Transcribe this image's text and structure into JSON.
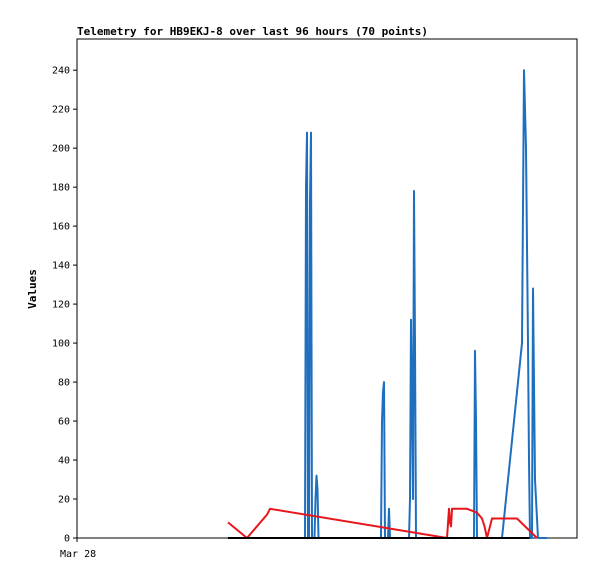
{
  "chart_data": {
    "type": "line",
    "title": "Telemetry for HB9EKJ-8 over last 96 hours (70 points)",
    "ylabel": "Values",
    "xlabel": "",
    "x_tick_labels": [
      {
        "label": "Mar 28",
        "x": 0
      }
    ],
    "xlim": [
      0,
      100
    ],
    "ylim": [
      0,
      256
    ],
    "yticks": [
      0,
      20,
      40,
      60,
      80,
      100,
      120,
      140,
      160,
      180,
      200,
      220,
      240
    ],
    "grid": false,
    "colors": {
      "blue": "#1f6fbf",
      "red": "#e8161a",
      "black": "#000000"
    },
    "series": [
      {
        "color": "blue",
        "x": [
          30.2,
          45.4,
          45.6,
          45.8,
          46.0,
          46.2,
          46.4,
          46.6,
          46.8,
          47.0,
          47.3,
          47.5,
          47.7,
          47.9,
          48.1,
          48.3,
          48.5,
          48.7,
          48.9,
          49.2,
          49.4,
          49.6,
          50.0,
          50.4,
          60.6,
          60.8,
          61.0,
          61.2,
          61.4,
          61.6,
          61.8,
          62.0,
          62.2,
          62.4,
          62.6,
          62.8,
          63.0,
          63.2,
          63.4,
          63.6,
          66.2,
          66.4,
          66.6,
          66.8,
          67.0,
          67.2,
          67.4,
          67.6,
          67.8,
          68.0,
          68.2,
          68.4,
          68.6,
          68.8,
          79.0,
          79.2,
          79.4,
          79.6,
          79.8,
          80.0,
          80.2,
          80.4,
          80.6,
          80.8,
          85.0,
          89.0,
          89.4,
          89.8,
          90.2,
          90.4,
          90.6,
          90.8,
          91.0,
          91.2,
          91.6,
          92.2,
          92.4,
          92.6,
          92.8,
          93.0,
          93.2,
          93.4,
          93.6,
          93.8,
          94.0
        ],
        "y": [
          0,
          0,
          0,
          180,
          208,
          0,
          0,
          173,
          208,
          0,
          0,
          0,
          20,
          32,
          25,
          0,
          0,
          0,
          0,
          0,
          0,
          0,
          0,
          0,
          0,
          0,
          60,
          75,
          80,
          0,
          0,
          0,
          0,
          15,
          0,
          0,
          0,
          0,
          0,
          0,
          0,
          0,
          20,
          112,
          70,
          20,
          178,
          100,
          0,
          0,
          0,
          0,
          0,
          0,
          0,
          0,
          0,
          96,
          60,
          0,
          0,
          0,
          0,
          0,
          0,
          100,
          240,
          200,
          100,
          40,
          0,
          0,
          0,
          128,
          30,
          0,
          0,
          0,
          0,
          0,
          0,
          0,
          0,
          0,
          0
        ]
      },
      {
        "color": "red",
        "x": [
          30.2,
          34.0,
          38.0,
          38.6,
          74.0,
          74.4,
          74.6,
          74.8,
          75.0,
          75.4,
          76.0,
          77.0,
          78.0,
          79.0,
          80.0,
          81.0,
          81.5,
          82.0,
          83.0,
          85.0,
          88.0,
          92.0
        ],
        "y": [
          8,
          0,
          12,
          15,
          0,
          15,
          8,
          6,
          15,
          15,
          15,
          15,
          15,
          14,
          13,
          10,
          6,
          0,
          10,
          10,
          10,
          0
        ]
      },
      {
        "color": "black",
        "x": [
          30.2,
          90.5
        ],
        "y": [
          0,
          0
        ]
      }
    ]
  }
}
